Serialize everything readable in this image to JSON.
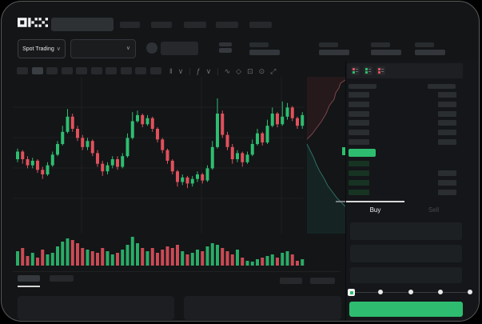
{
  "app": {
    "title": "OKX Spot Trading"
  },
  "colors": {
    "green": "#2ebd70",
    "red": "#e0515c",
    "bid_row_tint": "#17structure",
    "window_bg": "#131517",
    "placeholder": "#26282b"
  },
  "header": {
    "logo": "OKX",
    "search_placeholder": "",
    "nav_item_count": 5
  },
  "subheader": {
    "market_selector_label": "Spot Trading",
    "market_selector_chevron": "∨",
    "pair_selector_chevron": "∨",
    "stat_group_count": 4
  },
  "chart_toolbar": {
    "timeframe_slot_count": 10,
    "active_slot_index": 1,
    "icons": [
      {
        "name": "candle-style-icon",
        "glyph": "‖"
      },
      {
        "name": "chevron-down-icon",
        "glyph": "∨"
      },
      {
        "name": "separator",
        "glyph": "|"
      },
      {
        "name": "indicators-icon",
        "glyph": "ƒ"
      },
      {
        "name": "chevron-down-icon",
        "glyph": "∨"
      },
      {
        "name": "separator",
        "glyph": "|"
      },
      {
        "name": "trendline-icon",
        "glyph": "∿"
      },
      {
        "name": "brush-icon",
        "glyph": "◇"
      },
      {
        "name": "camera-icon",
        "glyph": "⊡"
      },
      {
        "name": "settings-icon",
        "glyph": "⊙"
      },
      {
        "name": "fullscreen-icon",
        "glyph": "⤢"
      }
    ]
  },
  "order_book": {
    "view_icons": [
      {
        "name": "orderbook-layout-both-icon",
        "top": "#e0515c",
        "bottom": "#2ebd70"
      },
      {
        "name": "orderbook-layout-bids-icon",
        "top": "#2ebd70",
        "bottom": "#2ebd70"
      },
      {
        "name": "orderbook-layout-asks-icon",
        "top": "#e0515c",
        "bottom": "#e0515c"
      }
    ],
    "ask_row_count": 6,
    "bid_rows": [
      {
        "has_right_bar": false
      },
      {
        "has_right_bar": true
      },
      {
        "has_right_bar": true
      },
      {
        "has_right_bar": true
      }
    ],
    "last_price_color": "#2ebd70"
  },
  "trade_panel": {
    "tabs": [
      {
        "label": "Buy",
        "active": true
      },
      {
        "label": "Sell",
        "active": false
      }
    ],
    "field_count": 3,
    "slider": {
      "stop_count": 5,
      "active_stop_index": 0
    },
    "submit_color": "#2ebd70"
  },
  "bottom_bar": {
    "tab_count": 2,
    "active_tab_index": 0,
    "right_slot_count": 2,
    "panel_count": 2
  },
  "chart_data": {
    "type": "candlestick",
    "note": "values normalized 0-100 price scale, [open, close, high, low]",
    "candles": [
      [
        50,
        55,
        57,
        48
      ],
      [
        55,
        50,
        56,
        47
      ],
      [
        50,
        46,
        52,
        44
      ],
      [
        46,
        49,
        51,
        44
      ],
      [
        49,
        43,
        50,
        41
      ],
      [
        43,
        40,
        45,
        37
      ],
      [
        40,
        46,
        48,
        39
      ],
      [
        46,
        53,
        55,
        45
      ],
      [
        53,
        60,
        62,
        52
      ],
      [
        60,
        68,
        72,
        59
      ],
      [
        68,
        78,
        83,
        67
      ],
      [
        78,
        70,
        80,
        68
      ],
      [
        70,
        64,
        72,
        62
      ],
      [
        64,
        58,
        66,
        56
      ],
      [
        58,
        62,
        64,
        56
      ],
      [
        62,
        54,
        63,
        52
      ],
      [
        54,
        47,
        56,
        45
      ],
      [
        47,
        42,
        49,
        39
      ],
      [
        42,
        46,
        48,
        40
      ],
      [
        46,
        50,
        52,
        44
      ],
      [
        50,
        45,
        52,
        43
      ],
      [
        45,
        52,
        54,
        44
      ],
      [
        52,
        64,
        67,
        51
      ],
      [
        64,
        75,
        81,
        63
      ],
      [
        75,
        79,
        82,
        74
      ],
      [
        79,
        73,
        80,
        71
      ],
      [
        73,
        77,
        79,
        72
      ],
      [
        77,
        70,
        78,
        68
      ],
      [
        70,
        63,
        71,
        61
      ],
      [
        63,
        56,
        64,
        54
      ],
      [
        56,
        49,
        57,
        47
      ],
      [
        49,
        42,
        50,
        40
      ],
      [
        42,
        35,
        43,
        32
      ],
      [
        35,
        38,
        40,
        33
      ],
      [
        38,
        34,
        39,
        31
      ],
      [
        34,
        37,
        39,
        32
      ],
      [
        37,
        40,
        42,
        35
      ],
      [
        40,
        36,
        41,
        34
      ],
      [
        36,
        44,
        46,
        35
      ],
      [
        44,
        58,
        62,
        43
      ],
      [
        58,
        80,
        90,
        57
      ],
      [
        80,
        66,
        82,
        64
      ],
      [
        66,
        58,
        68,
        56
      ],
      [
        58,
        50,
        60,
        47
      ],
      [
        50,
        54,
        56,
        48
      ],
      [
        54,
        48,
        55,
        45
      ],
      [
        48,
        53,
        55,
        47
      ],
      [
        53,
        60,
        63,
        52
      ],
      [
        60,
        67,
        70,
        59
      ],
      [
        67,
        61,
        68,
        59
      ],
      [
        61,
        72,
        76,
        60
      ],
      [
        72,
        80,
        84,
        71
      ],
      [
        80,
        73,
        81,
        71
      ],
      [
        73,
        78,
        88,
        72
      ],
      [
        78,
        84,
        87,
        76
      ],
      [
        84,
        77,
        85,
        75
      ],
      [
        77,
        72,
        78,
        70
      ],
      [
        72,
        79,
        81,
        70
      ]
    ],
    "volumes": [
      18,
      22,
      12,
      16,
      10,
      20,
      14,
      16,
      24,
      30,
      34,
      32,
      28,
      22,
      20,
      18,
      16,
      22,
      18,
      14,
      16,
      20,
      26,
      36,
      28,
      22,
      18,
      22,
      16,
      20,
      24,
      22,
      26,
      18,
      14,
      16,
      20,
      18,
      24,
      28,
      26,
      22,
      18,
      14,
      20,
      10,
      6,
      5,
      8,
      10,
      12,
      14,
      10,
      16,
      18,
      14,
      6,
      8
    ],
    "depth": {
      "asks": [
        [
          50,
          4
        ],
        [
          44,
          8
        ],
        [
          42,
          14
        ],
        [
          38,
          20
        ],
        [
          36,
          28
        ],
        [
          30,
          36
        ],
        [
          26,
          46
        ],
        [
          20,
          56
        ],
        [
          14,
          64
        ],
        [
          8,
          72
        ],
        [
          2,
          78
        ]
      ],
      "bids": [
        [
          2,
          84
        ],
        [
          6,
          92
        ],
        [
          10,
          100
        ],
        [
          14,
          110
        ],
        [
          18,
          118
        ],
        [
          24,
          128
        ],
        [
          28,
          136
        ],
        [
          34,
          144
        ],
        [
          40,
          152
        ],
        [
          46,
          158
        ],
        [
          50,
          162
        ]
      ]
    },
    "grid": true,
    "legend": "none"
  }
}
